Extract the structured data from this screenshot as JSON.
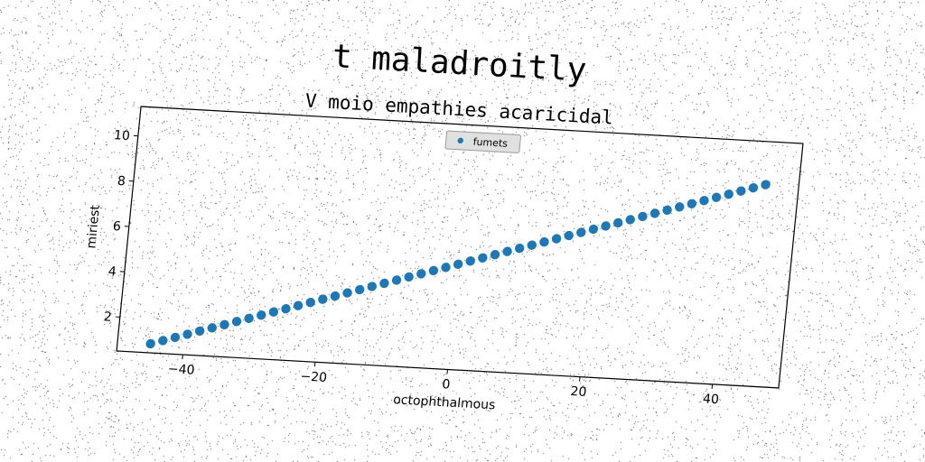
{
  "chart_data": {
    "type": "scatter",
    "title": "t maladroitly",
    "subtitle": "V moio empathies acaricidal",
    "xlabel": "octophthalmous",
    "ylabel": "miriest",
    "xlim": [
      -50,
      50
    ],
    "ylim": [
      0.5,
      11.3
    ],
    "xticks": [
      -40,
      -20,
      0,
      20,
      40
    ],
    "yticks": [
      2,
      4,
      6,
      8,
      10
    ],
    "grid": false,
    "legend": {
      "placement": "top-center",
      "entries": [
        "fumets"
      ]
    },
    "series": [
      {
        "name": "fumets",
        "color": "#1f77b4",
        "x": [
          -45.0,
          -43.2,
          -41.4,
          -39.6,
          -37.8,
          -36.0,
          -34.2,
          -32.4,
          -30.6,
          -28.8,
          -27.0,
          -25.2,
          -23.4,
          -21.6,
          -19.8,
          -18.0,
          -16.2,
          -14.4,
          -12.6,
          -10.8,
          -9.0,
          -7.2,
          -5.4,
          -3.6,
          -1.8,
          0.0,
          1.8,
          3.6,
          5.4,
          7.2,
          9.0,
          10.8,
          12.6,
          14.4,
          16.2,
          18.0,
          19.8,
          21.6,
          23.4,
          25.2,
          27.0,
          28.8,
          30.6,
          32.4,
          34.2,
          36.0,
          37.8,
          39.6,
          41.4,
          43.2,
          45.0
        ],
        "y": [
          0.9,
          1.07,
          1.24,
          1.41,
          1.58,
          1.75,
          1.92,
          2.09,
          2.26,
          2.43,
          2.6,
          2.77,
          2.94,
          3.11,
          3.28,
          3.45,
          3.62,
          3.79,
          3.96,
          4.13,
          4.3,
          4.47,
          4.64,
          4.81,
          4.98,
          5.15,
          5.32,
          5.49,
          5.66,
          5.83,
          6.0,
          6.17,
          6.34,
          6.51,
          6.68,
          6.85,
          7.02,
          7.19,
          7.36,
          7.53,
          7.7,
          7.87,
          8.04,
          8.21,
          8.38,
          8.55,
          8.72,
          8.89,
          9.06,
          9.23,
          9.4
        ]
      }
    ]
  }
}
